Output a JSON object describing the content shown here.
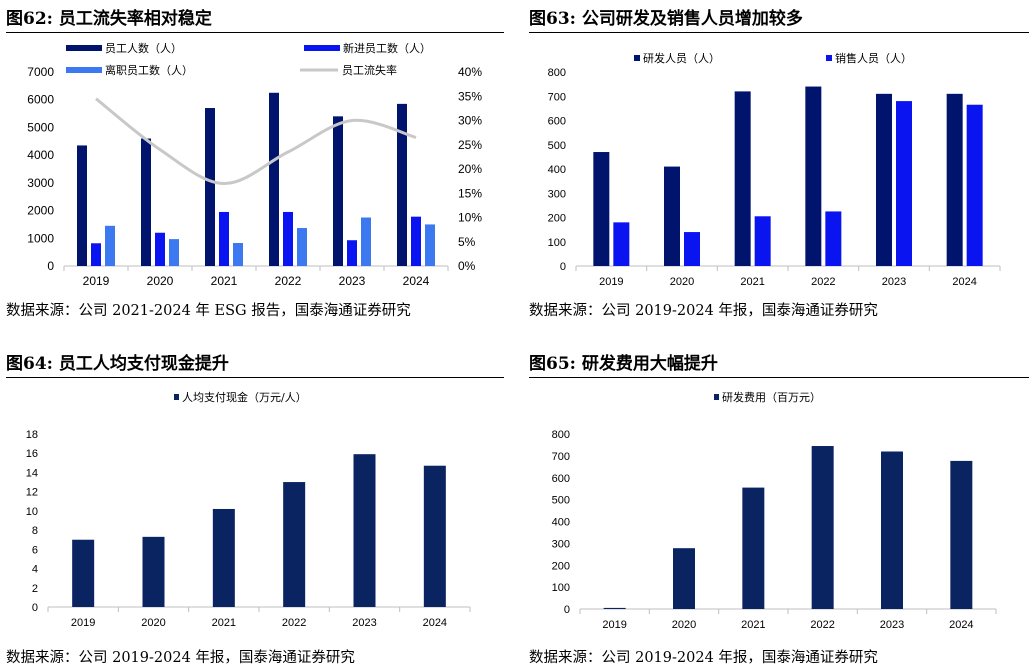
{
  "figures": [
    {
      "title": "图62:  员工流失率相对稳定",
      "source": "数据来源：公司 2021-2024 年 ESG 报告，国泰海通证券研究"
    },
    {
      "title": "图63:  公司研发及销售人员增加较多",
      "source": "数据来源：公司 2019-2024 年报，国泰海通证券研究"
    },
    {
      "title": "图64:  员工人均支付现金提升",
      "source": "数据来源：公司 2019-2024 年报，国泰海通证券研究"
    },
    {
      "title": "图65:  研发费用大幅提升",
      "source": "数据来源：公司 2019-2024 年报，国泰海通证券研究"
    }
  ],
  "colors": {
    "navy": "#00146e",
    "blue": "#0a14f0",
    "lightblue": "#3c78f0",
    "dark": "#0a2462",
    "gray": "#c8c8c8"
  },
  "chart_data": [
    {
      "type": "bar",
      "categories": [
        "2019",
        "2020",
        "2021",
        "2022",
        "2023",
        "2024"
      ],
      "series": [
        {
          "name": "员工人数（人）",
          "values": [
            4350,
            4600,
            5700,
            6250,
            5400,
            5850
          ],
          "color": "#00146e"
        },
        {
          "name": "新进员工数（人）",
          "values": [
            820,
            1200,
            1950,
            1950,
            930,
            1780
          ],
          "color": "#0a14f0"
        },
        {
          "name": "离职员工数（人）",
          "values": [
            1450,
            970,
            830,
            1370,
            1750,
            1500
          ],
          "color": "#3c78f0"
        },
        {
          "name": "员工流失率",
          "type": "line",
          "axis": "right",
          "values": [
            0.345,
            0.24,
            0.17,
            0.235,
            0.3,
            0.265
          ],
          "color": "#c8c8c8"
        }
      ],
      "ylim": [
        0,
        7000
      ],
      "yticks": [
        "0",
        "1000",
        "2000",
        "3000",
        "4000",
        "5000",
        "6000",
        "7000"
      ],
      "y2lim": [
        0,
        0.4
      ],
      "y2ticks": [
        "0%",
        "5%",
        "10%",
        "15%",
        "20%",
        "25%",
        "30%",
        "35%",
        "40%"
      ]
    },
    {
      "type": "bar",
      "categories": [
        "2019",
        "2020",
        "2021",
        "2022",
        "2023",
        "2024"
      ],
      "series": [
        {
          "name": "研发人员（人）",
          "values": [
            470,
            410,
            720,
            740,
            710,
            710
          ],
          "color": "#00146e"
        },
        {
          "name": "销售人员（人）",
          "values": [
            180,
            140,
            205,
            225,
            680,
            665
          ],
          "color": "#0a14f0"
        }
      ],
      "ylim": [
        0,
        800
      ],
      "yticks": [
        "0",
        "100",
        "200",
        "300",
        "400",
        "500",
        "600",
        "700",
        "800"
      ]
    },
    {
      "type": "bar",
      "categories": [
        "2019",
        "2020",
        "2021",
        "2022",
        "2023",
        "2024"
      ],
      "series": [
        {
          "name": "人均支付现金（万元/人）",
          "values": [
            7.0,
            7.3,
            10.2,
            13.0,
            15.9,
            14.7
          ],
          "color": "#0a2462"
        }
      ],
      "ylim": [
        0,
        18
      ],
      "yticks": [
        "0",
        "2",
        "4",
        "6",
        "8",
        "10",
        "12",
        "14",
        "16",
        "18"
      ]
    },
    {
      "type": "bar",
      "categories": [
        "2019",
        "2020",
        "2021",
        "2022",
        "2023",
        "2024"
      ],
      "series": [
        {
          "name": "研发费用（百万元）",
          "values": [
            5,
            278,
            555,
            745,
            720,
            677
          ],
          "color": "#0a2462"
        }
      ],
      "ylim": [
        0,
        800
      ],
      "yticks": [
        "0",
        "100",
        "200",
        "300",
        "400",
        "500",
        "600",
        "700",
        "800"
      ]
    }
  ]
}
